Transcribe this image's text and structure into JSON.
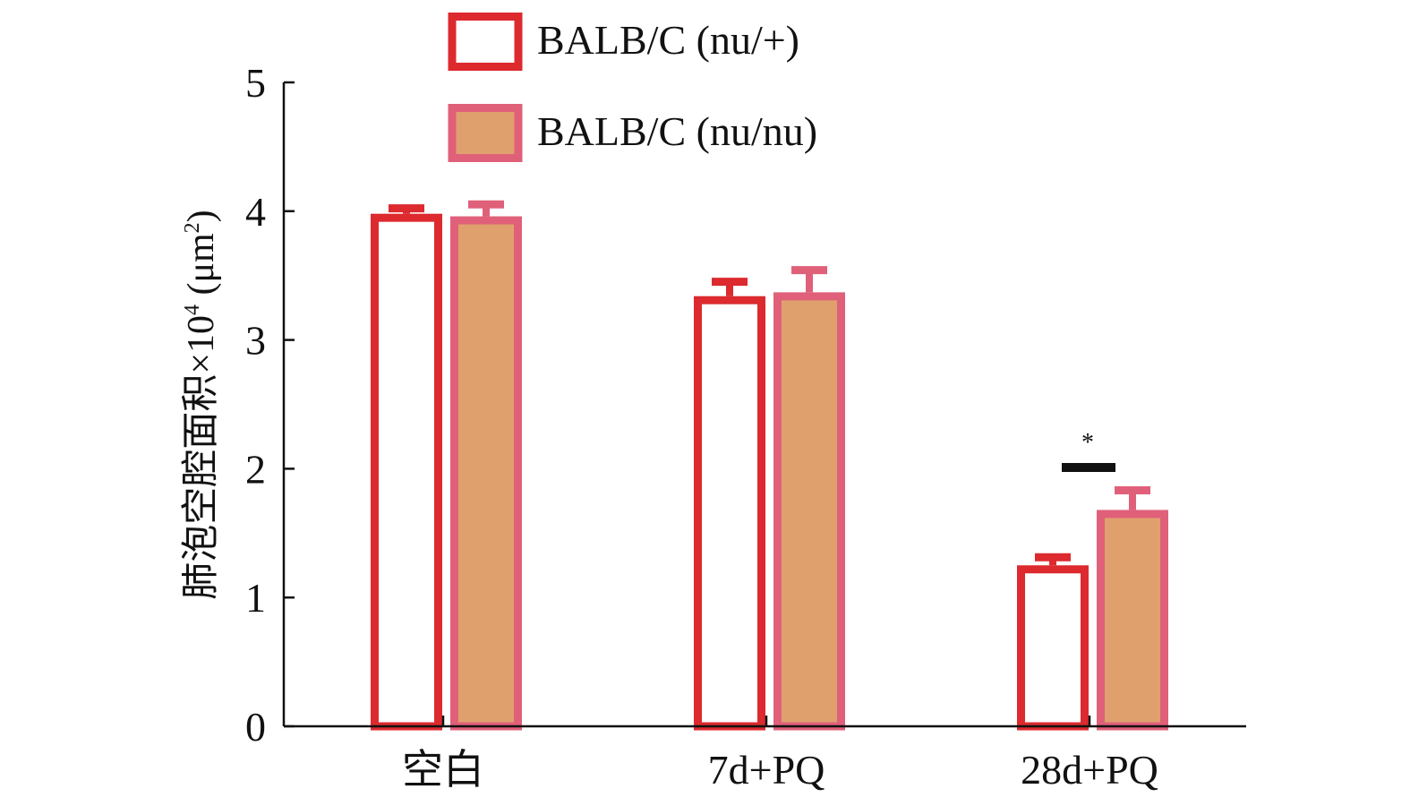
{
  "chart_data": {
    "type": "bar",
    "title": "",
    "xlabel": "",
    "ylabel": "肺泡空腔面积×10⁴ (μm²)",
    "ylabel_main": "肺泡空腔面积×10",
    "ylabel_exp": "4",
    "ylabel_unit": "(μm",
    "ylabel_unit_exp": "2",
    "ylabel_close": ")",
    "ylim": [
      0,
      5
    ],
    "yticks": [
      "0",
      "1",
      "2",
      "3",
      "4",
      "5"
    ],
    "categories": [
      "空白",
      "7d+PQ",
      "28d+PQ"
    ],
    "legend_position": "top",
    "series": [
      {
        "name": "BALB/C (nu/+)",
        "values": [
          3.98,
          3.34,
          1.25
        ],
        "errors": [
          0.07,
          0.14,
          0.09
        ],
        "stroke": "#dc2a2e",
        "fill": "#ffffff"
      },
      {
        "name": "BALB/C (nu/nu)",
        "values": [
          3.96,
          3.37,
          1.68
        ],
        "errors": [
          0.12,
          0.2,
          0.18
        ],
        "stroke": "#e0607a",
        "fill": "#dfa06d"
      }
    ],
    "annotations": [
      {
        "category": "28d+PQ",
        "text": "*"
      }
    ]
  }
}
